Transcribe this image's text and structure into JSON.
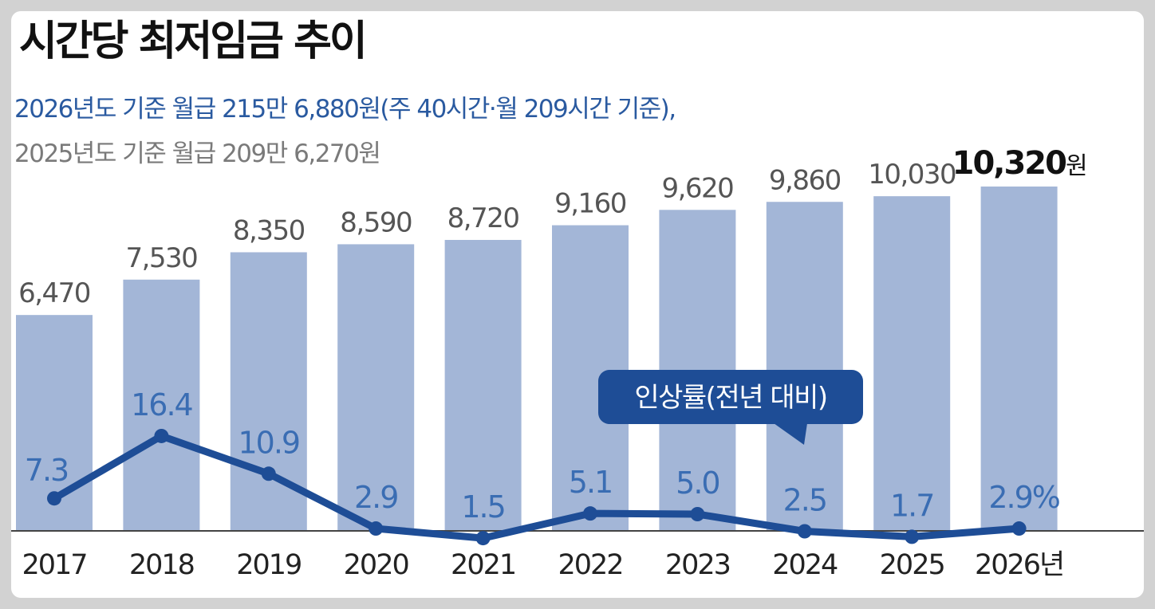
{
  "header": {
    "title": "시간당 최저임금 추이",
    "subtitle_2026": "2026년도 기준 월급 215만 6,880원(주 40시간·월 209시간 기준),",
    "subtitle_2025": "2025년도 기준 월급 209만 6,270원"
  },
  "colors": {
    "bar": "#a3b6d7",
    "line": "#1e4d96",
    "rate_label": "#3a6db3",
    "subtitle_blue": "#2a5aa0",
    "subtitle_gray": "#7a7a7a",
    "callout_bg": "#1e4d96"
  },
  "chart_data": {
    "type": "bar",
    "title": "시간당 최저임금 추이",
    "categories": [
      "2017",
      "2018",
      "2019",
      "2020",
      "2021",
      "2022",
      "2023",
      "2024",
      "2025",
      "2026년"
    ],
    "series": [
      {
        "values": [
          6470,
          7530,
          8350,
          8590,
          8720,
          9160,
          9620,
          9860,
          10030,
          10320
        ],
        "labels": [
          "6,470",
          "7,530",
          "8,350",
          "8,590",
          "8,720",
          "9,160",
          "9,620",
          "9,860",
          "10,030",
          "10,320"
        ],
        "last_label_unit": "원"
      },
      {
        "name": "인상률(전년 대비)",
        "type": "line",
        "values": [
          7.3,
          16.4,
          10.9,
          2.9,
          1.5,
          5.1,
          5.0,
          2.5,
          1.7,
          2.9
        ],
        "labels": [
          "7.3",
          "16.4",
          "10.9",
          "2.9",
          "1.5",
          "5.1",
          "5.0",
          "2.5",
          "1.7",
          "2.9%"
        ]
      }
    ],
    "callout": "인상률(전년 대비)",
    "grid": false,
    "highlight_index": 9
  }
}
